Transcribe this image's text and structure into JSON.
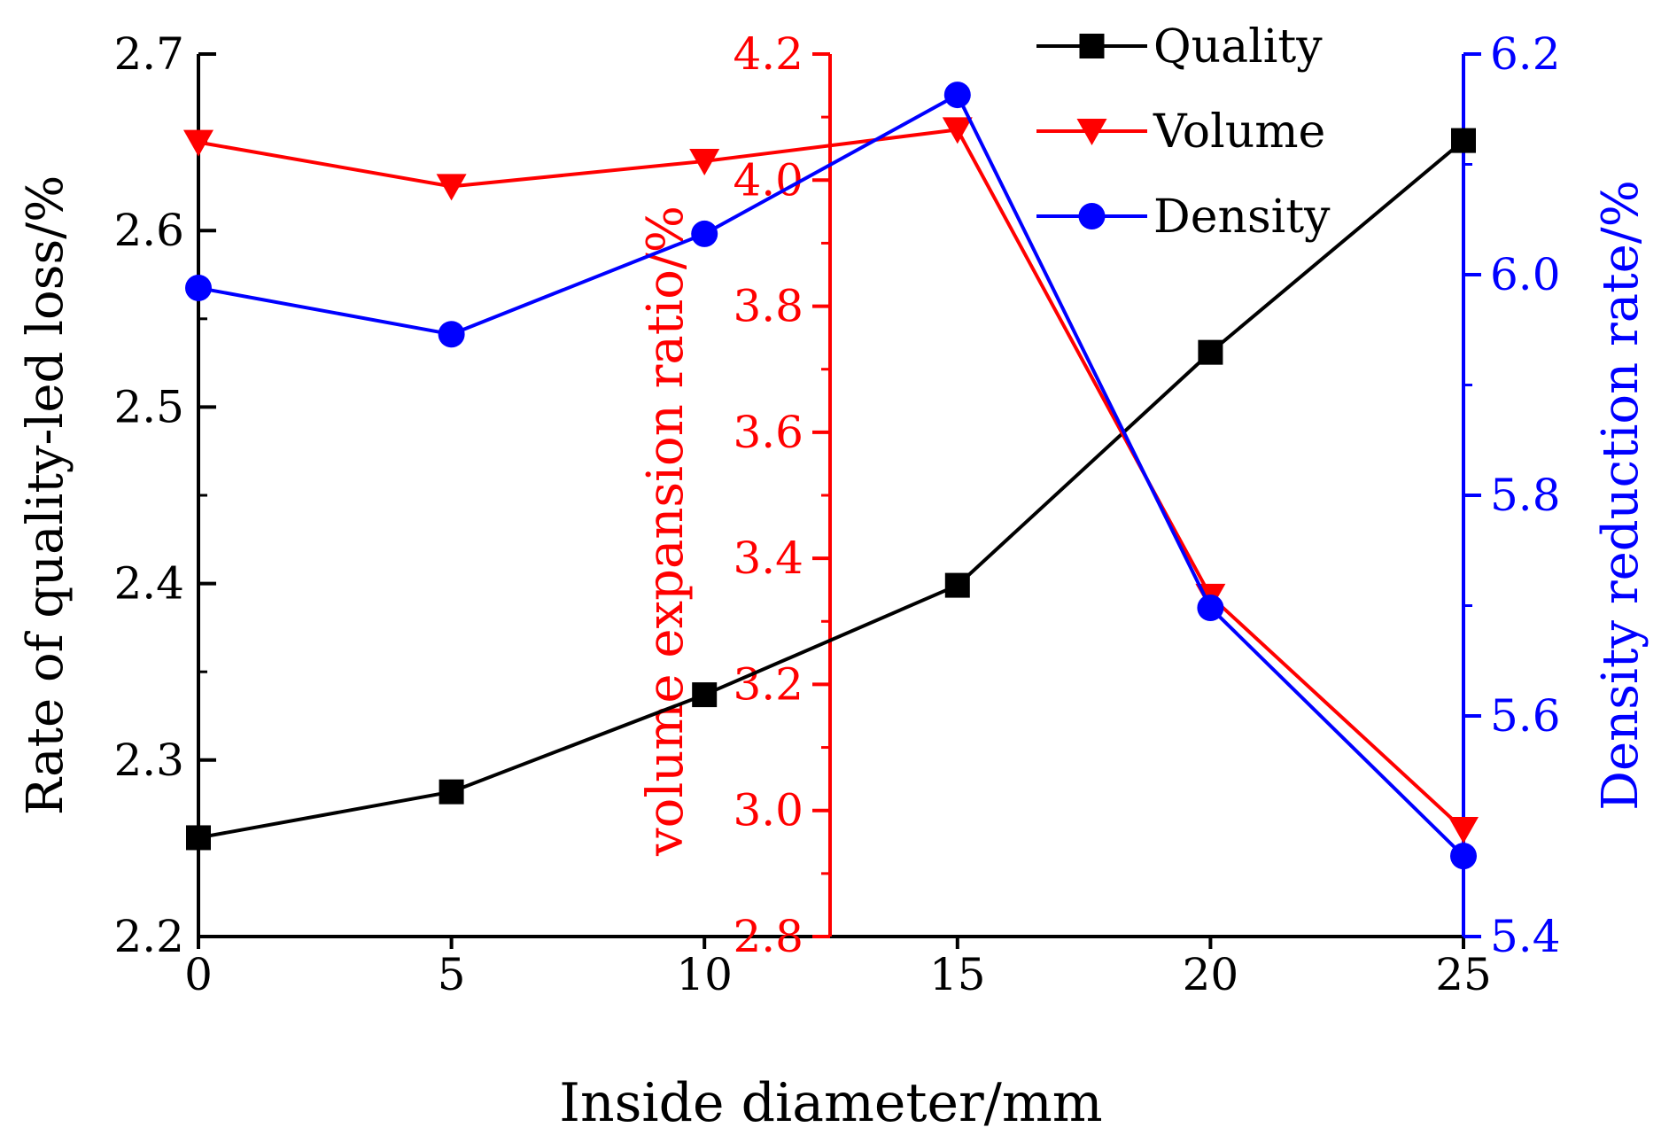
{
  "chart_data": {
    "type": "line",
    "x": [
      0,
      5,
      10,
      15,
      20,
      25
    ],
    "xlabel": "Inside diameter/mm",
    "xlim": [
      0,
      25
    ],
    "xticks": [
      "0",
      "5",
      "10",
      "15",
      "20",
      "25"
    ],
    "axes": {
      "left": {
        "label": "Rate of quality-led loss/%",
        "lim": [
          2.2,
          2.7
        ],
        "ticks": [
          "2.2",
          "2.3",
          "2.4",
          "2.5",
          "2.6",
          "2.7"
        ],
        "color": "#000000"
      },
      "middle": {
        "label": "volume expansion ratio/%",
        "lim": [
          2.8,
          4.2
        ],
        "ticks": [
          "2.8",
          "3.0",
          "3.2",
          "3.4",
          "3.6",
          "3.8",
          "4.0",
          "4.2"
        ],
        "color": "#ff0000"
      },
      "right": {
        "label": "Density reduction rate/%",
        "lim": [
          5.4,
          6.2
        ],
        "ticks": [
          "5.4",
          "5.6",
          "5.8",
          "6.0",
          "6.2"
        ],
        "color": "#0000ff"
      }
    },
    "series": [
      {
        "name": "Quality",
        "axis": "left",
        "marker": "square",
        "color": "#000000",
        "values": [
          2.256,
          2.282,
          2.337,
          2.399,
          2.531,
          2.651
        ]
      },
      {
        "name": "Volume",
        "axis": "middle",
        "marker": "triangle-down",
        "color": "#ff0000",
        "values": [
          4.06,
          3.99,
          4.03,
          4.08,
          3.34,
          2.97
        ]
      },
      {
        "name": "Density",
        "axis": "right",
        "marker": "circle",
        "color": "#0000ff",
        "values": [
          5.988,
          5.946,
          6.037,
          6.163,
          5.698,
          5.473
        ]
      }
    ],
    "legend": {
      "position": "top-right",
      "entries": [
        "Quality",
        "Volume",
        "Density"
      ]
    }
  }
}
